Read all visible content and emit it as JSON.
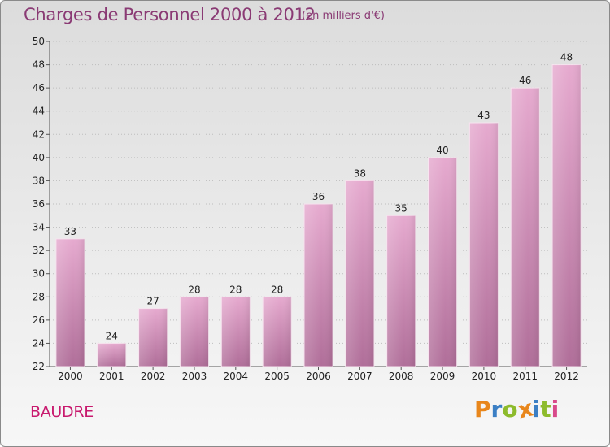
{
  "title": "Charges de Personnel 2000 à 2012",
  "subtitle": "(en milliers d'€)",
  "place": "BAUDRE",
  "logo": {
    "text": "Proxiti",
    "letters": [
      {
        "ch": "P",
        "color": "#e8861b"
      },
      {
        "ch": "r",
        "color": "#3b7fc4"
      },
      {
        "ch": "o",
        "color": "#8dbb2c"
      },
      {
        "ch": "x",
        "color": "#e8861b"
      },
      {
        "ch": "i",
        "color": "#3b7fc4"
      },
      {
        "ch": "t",
        "color": "#8dbb2c"
      },
      {
        "ch": "i",
        "color": "#d84a8a"
      }
    ]
  },
  "colors": {
    "title": "#8a3a74",
    "place": "#c8196e",
    "bar_top": "#e6aacf",
    "bar_bottom": "#b06e99"
  },
  "chart_data": {
    "type": "bar",
    "title": "Charges de Personnel 2000 à 2012",
    "subtitle": "(en milliers d'€)",
    "categories": [
      "2000",
      "2001",
      "2002",
      "2003",
      "2004",
      "2005",
      "2006",
      "2007",
      "2008",
      "2009",
      "2010",
      "2011",
      "2012"
    ],
    "values": [
      33,
      24,
      27,
      28,
      28,
      28,
      36,
      38,
      35,
      40,
      43,
      46,
      48
    ],
    "ylim": [
      22,
      50
    ],
    "yticks": [
      22,
      24,
      26,
      28,
      30,
      32,
      34,
      36,
      38,
      40,
      42,
      44,
      46,
      48,
      50
    ],
    "grid": true,
    "data_labels": true
  }
}
